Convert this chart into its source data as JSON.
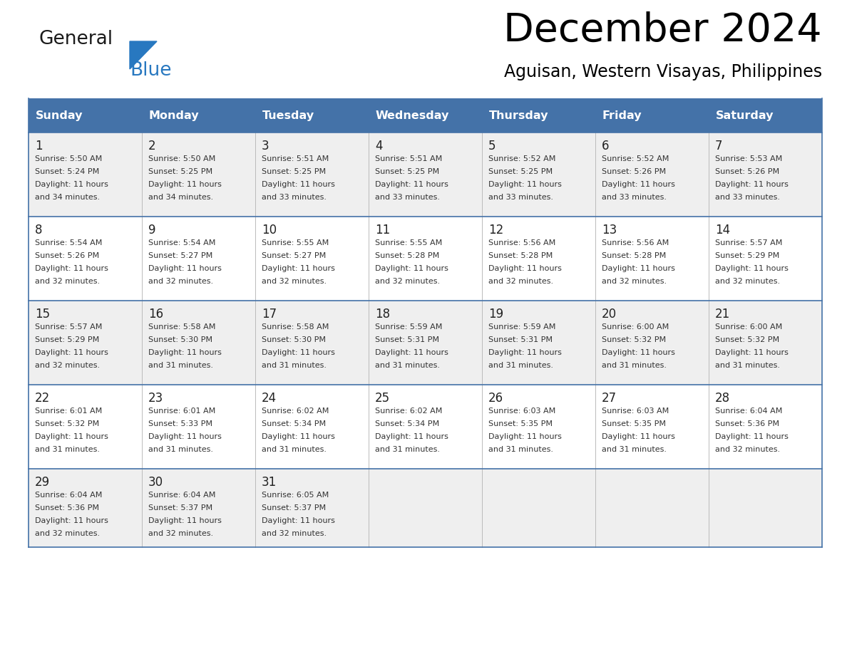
{
  "title": "December 2024",
  "subtitle": "Aguisan, Western Visayas, Philippines",
  "days_of_week": [
    "Sunday",
    "Monday",
    "Tuesday",
    "Wednesday",
    "Thursday",
    "Friday",
    "Saturday"
  ],
  "header_bg": "#4472A8",
  "header_text": "#FFFFFF",
  "row_bg_light": "#EFEFEF",
  "row_bg_white": "#FFFFFF",
  "cell_border_color": "#4472A8",
  "day_number_color": "#222222",
  "text_color": "#333333",
  "logo_text_color": "#1a1a1a",
  "logo_blue_color": "#2878C0",
  "triangle_color": "#2878C0",
  "calendar_data": [
    [
      {
        "day": "1",
        "sunrise": "5:50 AM",
        "sunset": "5:24 PM",
        "daylight1": "11 hours",
        "daylight2": "and 34 minutes."
      },
      {
        "day": "2",
        "sunrise": "5:50 AM",
        "sunset": "5:25 PM",
        "daylight1": "11 hours",
        "daylight2": "and 34 minutes."
      },
      {
        "day": "3",
        "sunrise": "5:51 AM",
        "sunset": "5:25 PM",
        "daylight1": "11 hours",
        "daylight2": "and 33 minutes."
      },
      {
        "day": "4",
        "sunrise": "5:51 AM",
        "sunset": "5:25 PM",
        "daylight1": "11 hours",
        "daylight2": "and 33 minutes."
      },
      {
        "day": "5",
        "sunrise": "5:52 AM",
        "sunset": "5:25 PM",
        "daylight1": "11 hours",
        "daylight2": "and 33 minutes."
      },
      {
        "day": "6",
        "sunrise": "5:52 AM",
        "sunset": "5:26 PM",
        "daylight1": "11 hours",
        "daylight2": "and 33 minutes."
      },
      {
        "day": "7",
        "sunrise": "5:53 AM",
        "sunset": "5:26 PM",
        "daylight1": "11 hours",
        "daylight2": "and 33 minutes."
      }
    ],
    [
      {
        "day": "8",
        "sunrise": "5:54 AM",
        "sunset": "5:26 PM",
        "daylight1": "11 hours",
        "daylight2": "and 32 minutes."
      },
      {
        "day": "9",
        "sunrise": "5:54 AM",
        "sunset": "5:27 PM",
        "daylight1": "11 hours",
        "daylight2": "and 32 minutes."
      },
      {
        "day": "10",
        "sunrise": "5:55 AM",
        "sunset": "5:27 PM",
        "daylight1": "11 hours",
        "daylight2": "and 32 minutes."
      },
      {
        "day": "11",
        "sunrise": "5:55 AM",
        "sunset": "5:28 PM",
        "daylight1": "11 hours",
        "daylight2": "and 32 minutes."
      },
      {
        "day": "12",
        "sunrise": "5:56 AM",
        "sunset": "5:28 PM",
        "daylight1": "11 hours",
        "daylight2": "and 32 minutes."
      },
      {
        "day": "13",
        "sunrise": "5:56 AM",
        "sunset": "5:28 PM",
        "daylight1": "11 hours",
        "daylight2": "and 32 minutes."
      },
      {
        "day": "14",
        "sunrise": "5:57 AM",
        "sunset": "5:29 PM",
        "daylight1": "11 hours",
        "daylight2": "and 32 minutes."
      }
    ],
    [
      {
        "day": "15",
        "sunrise": "5:57 AM",
        "sunset": "5:29 PM",
        "daylight1": "11 hours",
        "daylight2": "and 32 minutes."
      },
      {
        "day": "16",
        "sunrise": "5:58 AM",
        "sunset": "5:30 PM",
        "daylight1": "11 hours",
        "daylight2": "and 31 minutes."
      },
      {
        "day": "17",
        "sunrise": "5:58 AM",
        "sunset": "5:30 PM",
        "daylight1": "11 hours",
        "daylight2": "and 31 minutes."
      },
      {
        "day": "18",
        "sunrise": "5:59 AM",
        "sunset": "5:31 PM",
        "daylight1": "11 hours",
        "daylight2": "and 31 minutes."
      },
      {
        "day": "19",
        "sunrise": "5:59 AM",
        "sunset": "5:31 PM",
        "daylight1": "11 hours",
        "daylight2": "and 31 minutes."
      },
      {
        "day": "20",
        "sunrise": "6:00 AM",
        "sunset": "5:32 PM",
        "daylight1": "11 hours",
        "daylight2": "and 31 minutes."
      },
      {
        "day": "21",
        "sunrise": "6:00 AM",
        "sunset": "5:32 PM",
        "daylight1": "11 hours",
        "daylight2": "and 31 minutes."
      }
    ],
    [
      {
        "day": "22",
        "sunrise": "6:01 AM",
        "sunset": "5:32 PM",
        "daylight1": "11 hours",
        "daylight2": "and 31 minutes."
      },
      {
        "day": "23",
        "sunrise": "6:01 AM",
        "sunset": "5:33 PM",
        "daylight1": "11 hours",
        "daylight2": "and 31 minutes."
      },
      {
        "day": "24",
        "sunrise": "6:02 AM",
        "sunset": "5:34 PM",
        "daylight1": "11 hours",
        "daylight2": "and 31 minutes."
      },
      {
        "day": "25",
        "sunrise": "6:02 AM",
        "sunset": "5:34 PM",
        "daylight1": "11 hours",
        "daylight2": "and 31 minutes."
      },
      {
        "day": "26",
        "sunrise": "6:03 AM",
        "sunset": "5:35 PM",
        "daylight1": "11 hours",
        "daylight2": "and 31 minutes."
      },
      {
        "day": "27",
        "sunrise": "6:03 AM",
        "sunset": "5:35 PM",
        "daylight1": "11 hours",
        "daylight2": "and 31 minutes."
      },
      {
        "day": "28",
        "sunrise": "6:04 AM",
        "sunset": "5:36 PM",
        "daylight1": "11 hours",
        "daylight2": "and 32 minutes."
      }
    ],
    [
      {
        "day": "29",
        "sunrise": "6:04 AM",
        "sunset": "5:36 PM",
        "daylight1": "11 hours",
        "daylight2": "and 32 minutes."
      },
      {
        "day": "30",
        "sunrise": "6:04 AM",
        "sunset": "5:37 PM",
        "daylight1": "11 hours",
        "daylight2": "and 32 minutes."
      },
      {
        "day": "31",
        "sunrise": "6:05 AM",
        "sunset": "5:37 PM",
        "daylight1": "11 hours",
        "daylight2": "and 32 minutes."
      },
      null,
      null,
      null,
      null
    ]
  ]
}
